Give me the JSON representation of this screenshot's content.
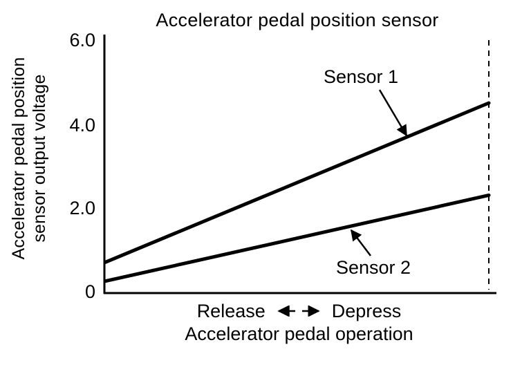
{
  "chart_data": {
    "type": "line",
    "title": "Accelerator pedal position sensor",
    "ylabel": "Accelerator pedal position sensor output voltage",
    "ylabel_lines": [
      "Accelerator pedal position",
      "sensor output voltage"
    ],
    "xlabel": "Accelerator pedal operation",
    "x_annotation": {
      "left": "Release",
      "right": "Depress"
    },
    "y_ticks": [
      0,
      2.0,
      4.0,
      6.0
    ],
    "y_tick_labels": [
      "0",
      "2.0",
      "4.0",
      "6.0"
    ],
    "ylim": [
      0,
      6.0
    ],
    "x_domain_fraction": [
      0,
      1
    ],
    "series": [
      {
        "name": "Sensor 1",
        "x": [
          0,
          1
        ],
        "values": [
          0.7,
          4.5
        ]
      },
      {
        "name": "Sensor 2",
        "x": [
          0,
          1
        ],
        "values": [
          0.25,
          2.3
        ]
      }
    ],
    "line_color": "#000000",
    "background": "#ffffff",
    "grid": false,
    "legend": "inline-annotations",
    "dashed_guide_at_x": 1
  }
}
